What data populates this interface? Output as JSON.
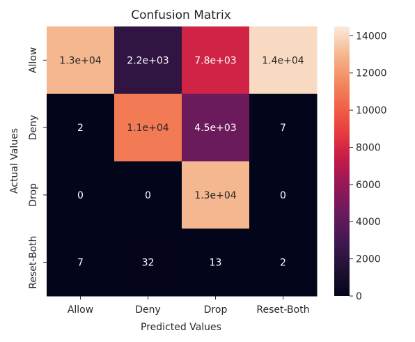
{
  "chart_data": {
    "type": "heatmap",
    "title": "Confusion Matrix",
    "xlabel": "Predicted Values",
    "ylabel": "Actual Values",
    "x_categories": [
      "Allow",
      "Deny",
      "Drop",
      "Reset-Both"
    ],
    "y_categories": [
      "Allow",
      "Deny",
      "Drop",
      "Reset-Both"
    ],
    "values": [
      [
        13000,
        2200,
        7800,
        14000
      ],
      [
        2,
        11000,
        4500,
        7
      ],
      [
        0,
        0,
        13000,
        0
      ],
      [
        7,
        32,
        13,
        2
      ]
    ],
    "annotations": [
      [
        "1.3e+04",
        "2.2e+03",
        "7.8e+03",
        "1.4e+04"
      ],
      [
        "2",
        "1.1e+04",
        "4.5e+03",
        "7"
      ],
      [
        "0",
        "0",
        "1.3e+04",
        "0"
      ],
      [
        "7",
        "32",
        "13",
        "2"
      ]
    ],
    "colormap": "rocket",
    "colorbar": {
      "range": [
        0,
        14500
      ],
      "ticks": [
        0,
        2000,
        4000,
        6000,
        8000,
        10000,
        12000,
        14000
      ]
    }
  }
}
